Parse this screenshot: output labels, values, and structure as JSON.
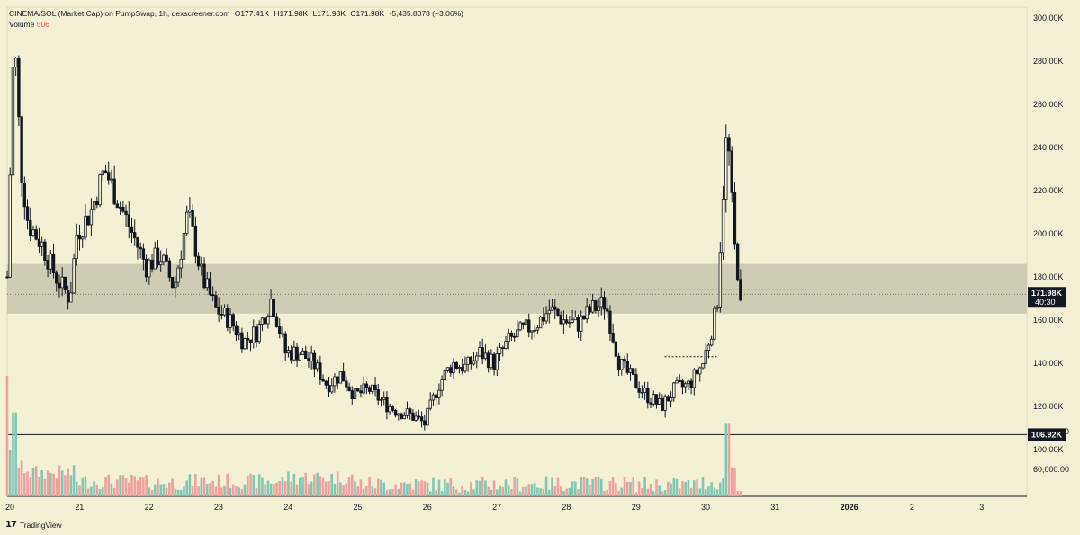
{
  "header": {
    "symbol": "CINEMA/SOL (Market Cap) on PumpSwap, 1h, dexscreener.com",
    "open": "O177.41K",
    "high": "H171.98K",
    "low": "L171.98K",
    "close": "C171.98K",
    "change": "-5,435.8078 (−3.06%)",
    "volume_label": "Volume",
    "volume_value": "506"
  },
  "footer": {
    "brand": "TradingView",
    "logo": "tradingview-logo"
  },
  "colors": {
    "background": "#f4f0d6",
    "up": "#2a2e39",
    "down": "#131722",
    "vol_up": "#80c8b4",
    "vol_down": "#f0a0a0",
    "zone": "#c8c5b0",
    "label_bg": "#131722"
  },
  "chart_data": {
    "type": "candlestick",
    "xlabel": "",
    "ylabel": "",
    "x_ticks": [
      "20",
      "21",
      "22",
      "23",
      "24",
      "25",
      "26",
      "27",
      "28",
      "29",
      "30",
      "31",
      "2026",
      "2",
      "3"
    ],
    "y_ticks_price": [
      "300.00K",
      "280.00K",
      "260.00K",
      "240.00K",
      "220.00K",
      "200.00K",
      "180.00K",
      "160.00K",
      "140.00K",
      "120.00K",
      "100.00K"
    ],
    "y_ticks_volume": [
      "80,000.00",
      "60,000.00"
    ],
    "price_range": [
      95000,
      305000
    ],
    "price_label": {
      "value": "171.98K",
      "countdown": "40:30"
    },
    "support_line": {
      "label": "106.92K",
      "value": 106920
    },
    "zone": [
      163000,
      186000
    ],
    "dotted_levels": [
      {
        "value": 174000,
        "from_day": 28.0,
        "to_day": 31.5
      },
      {
        "value": 143000,
        "from_day": 29.45,
        "to_day": 30.2
      }
    ],
    "candles_approx_path": [
      [
        20.0,
        180000
      ],
      [
        20.1,
        295000
      ],
      [
        20.2,
        230000
      ],
      [
        20.3,
        205000
      ],
      [
        20.5,
        195000
      ],
      [
        20.7,
        180000
      ],
      [
        20.9,
        170000
      ],
      [
        21.0,
        200000
      ],
      [
        21.2,
        210000
      ],
      [
        21.4,
        230000
      ],
      [
        21.6,
        215000
      ],
      [
        21.8,
        200000
      ],
      [
        22.0,
        185000
      ],
      [
        22.2,
        190000
      ],
      [
        22.4,
        175000
      ],
      [
        22.6,
        210000
      ],
      [
        22.8,
        180000
      ],
      [
        23.0,
        165000
      ],
      [
        23.2,
        160000
      ],
      [
        23.4,
        150000
      ],
      [
        23.6,
        155000
      ],
      [
        23.8,
        170000
      ],
      [
        24.0,
        145000
      ],
      [
        24.2,
        145000
      ],
      [
        24.4,
        140000
      ],
      [
        24.6,
        130000
      ],
      [
        24.8,
        135000
      ],
      [
        25.0,
        125000
      ],
      [
        25.2,
        128000
      ],
      [
        25.4,
        122000
      ],
      [
        25.6,
        118000
      ],
      [
        25.8,
        116000
      ],
      [
        26.0,
        112000
      ],
      [
        26.2,
        130000
      ],
      [
        26.4,
        140000
      ],
      [
        26.6,
        138000
      ],
      [
        26.8,
        145000
      ],
      [
        27.0,
        140000
      ],
      [
        27.2,
        150000
      ],
      [
        27.4,
        155000
      ],
      [
        27.6,
        158000
      ],
      [
        27.8,
        165000
      ],
      [
        28.0,
        160000
      ],
      [
        28.2,
        158000
      ],
      [
        28.4,
        165000
      ],
      [
        28.6,
        168000
      ],
      [
        28.8,
        140000
      ],
      [
        29.0,
        132000
      ],
      [
        29.2,
        125000
      ],
      [
        29.4,
        120000
      ],
      [
        29.6,
        128000
      ],
      [
        29.8,
        130000
      ],
      [
        30.0,
        140000
      ],
      [
        30.2,
        165000
      ],
      [
        30.3,
        225000
      ],
      [
        30.35,
        250000
      ],
      [
        30.45,
        195000
      ],
      [
        30.55,
        172000
      ]
    ],
    "volume_approx": [
      [
        20.0,
        90000
      ],
      [
        20.1,
        72000
      ],
      [
        20.3,
        65000
      ],
      [
        21.0,
        52000
      ],
      [
        22.0,
        50000
      ],
      [
        22.6,
        52000
      ],
      [
        24.0,
        58000
      ],
      [
        25.0,
        48000
      ],
      [
        26.0,
        47000
      ],
      [
        27.0,
        48000
      ],
      [
        28.0,
        49000
      ],
      [
        29.0,
        47000
      ],
      [
        30.0,
        50000
      ],
      [
        30.35,
        72000
      ],
      [
        30.5,
        49000
      ]
    ]
  }
}
